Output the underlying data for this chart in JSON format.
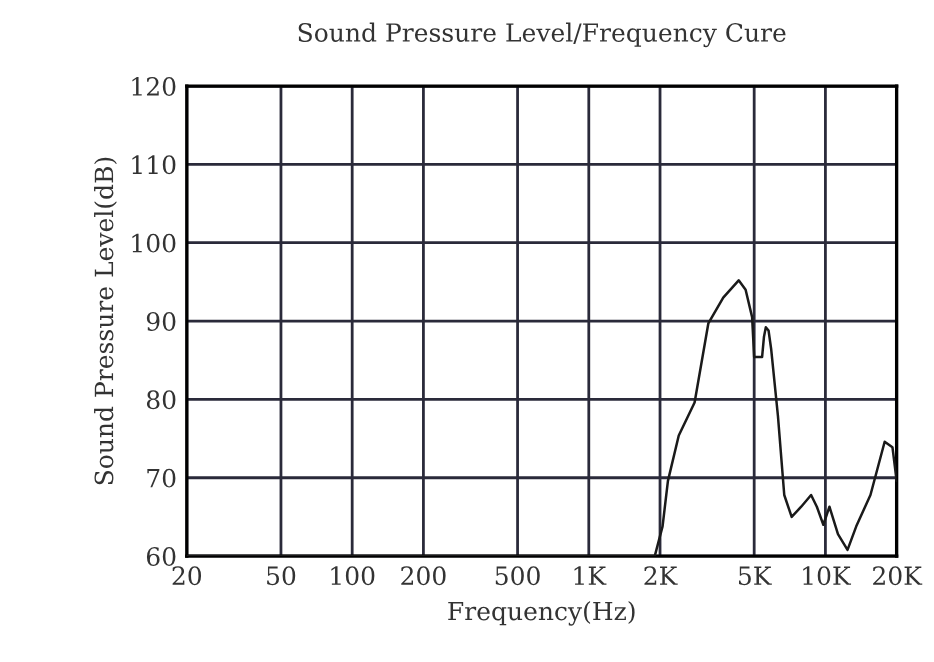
{
  "chart_data": {
    "type": "line",
    "title": "Sound Pressure Level/Frequency Cure",
    "xlabel": "Frequency(Hz)",
    "ylabel": "Sound Pressure Level(dB)",
    "log": "x",
    "xlim": [
      20,
      20000
    ],
    "ylim": [
      60,
      120
    ],
    "xticks": [
      20,
      50,
      100,
      200,
      500,
      {
        "value": 1000,
        "label": "1K"
      },
      {
        "value": 2000,
        "label": "2K"
      },
      {
        "value": 5000,
        "label": "5K"
      },
      {
        "value": 10000,
        "label": "10K"
      },
      {
        "value": 20000,
        "label": "20K"
      }
    ],
    "yticks": [
      60,
      70,
      80,
      90,
      100,
      110,
      120
    ],
    "grid": true,
    "marker": "none",
    "line_style": "solid",
    "series": [
      {
        "color": "#1a1a1a",
        "x": [
          20,
          1900,
          2050,
          2160,
          2400,
          2800,
          3200,
          3700,
          4300,
          4600,
          4900,
          5000,
          5400,
          5500,
          5600,
          5750,
          5900,
          6300,
          6700,
          7200,
          7900,
          8700,
          9200,
          9800,
          10400,
          11300,
          12400,
          13500,
          15500,
          17800,
          19200,
          20000
        ],
        "values": [
          60,
          60,
          63.8,
          69.6,
          75.4,
          79.6,
          89.7,
          93,
          95.2,
          94,
          90.5,
          85.4,
          85.4,
          88,
          89.2,
          88.8,
          86.4,
          77.9,
          67.8,
          65,
          66.3,
          67.8,
          66.3,
          64,
          66.3,
          62.8,
          60.8,
          63.8,
          67.8,
          74.6,
          73.9,
          69.6
        ]
      }
    ]
  }
}
